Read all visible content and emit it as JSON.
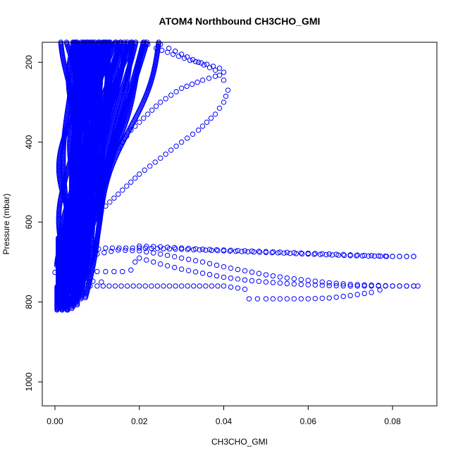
{
  "chart_data": {
    "type": "scatter",
    "title": "ATOM4 Northbound CH3CHO_GMI",
    "xlabel": "CH3CHO_GMI",
    "ylabel": "Pressure (mbar)",
    "xlim": [
      -0.003,
      0.0905
    ],
    "ylim": [
      1060,
      150
    ],
    "y_inverted": true,
    "grid": false,
    "legend": "none",
    "marker": "open-circle",
    "color": "#0000ff",
    "x_ticks": [
      0.0,
      0.02,
      0.04,
      0.06,
      0.08
    ],
    "x_tick_labels": [
      "0.00",
      "0.02",
      "0.04",
      "0.06",
      "0.08"
    ],
    "y_ticks": [
      200,
      400,
      600,
      800,
      1000
    ],
    "y_tick_labels": [
      "200",
      "400",
      "600",
      "800",
      "1000"
    ],
    "series": [
      {
        "x": [
          0.003,
          0.0035,
          0.004,
          0.004,
          0.005,
          0.006,
          0.006,
          0.007,
          0.009,
          0.011,
          0.013,
          0.016,
          0.018,
          0.021,
          0.025,
          0.03,
          0.035,
          0.038,
          0.04,
          0.039,
          0.036,
          0.032,
          0.028,
          0.024,
          0.022
        ],
        "y": [
          820,
          800,
          760,
          720,
          680,
          640,
          600,
          560,
          520,
          480,
          440,
          400,
          370,
          340,
          300,
          265,
          245,
          235,
          225,
          215,
          205,
          195,
          180,
          165,
          155
        ]
      },
      {
        "x": [
          0.002,
          0.003,
          0.004,
          0.006,
          0.009,
          0.012,
          0.016,
          0.02,
          0.025,
          0.03,
          0.034,
          0.038,
          0.04,
          0.041,
          0.04,
          0.038,
          0.034,
          0.03,
          0.027,
          0.025
        ],
        "y": [
          760,
          720,
          680,
          640,
          600,
          560,
          520,
          480,
          440,
          400,
          370,
          330,
          300,
          270,
          245,
          220,
          200,
          180,
          165,
          155
        ]
      },
      {
        "x": [
          0.001,
          0.002,
          0.004,
          0.007,
          0.012,
          0.02,
          0.03,
          0.04,
          0.05,
          0.06,
          0.07,
          0.08,
          0.085
        ],
        "y": [
          700,
          690,
          680,
          672,
          665,
          665,
          668,
          672,
          676,
          680,
          684,
          686,
          686
        ]
      },
      {
        "x": [
          0.002,
          0.005,
          0.01,
          0.015,
          0.02,
          0.025,
          0.03,
          0.035,
          0.04,
          0.045,
          0.05,
          0.055,
          0.06,
          0.065,
          0.07,
          0.075,
          0.08,
          0.085,
          0.086
        ],
        "y": [
          740,
          710,
          680,
          670,
          672,
          680,
          690,
          700,
          712,
          722,
          732,
          740,
          746,
          752,
          756,
          758,
          760,
          760,
          760
        ]
      },
      {
        "x": [
          0.001,
          0.005,
          0.01,
          0.02,
          0.03,
          0.04,
          0.045,
          0.046,
          0.05,
          0.055,
          0.06,
          0.065,
          0.07,
          0.075,
          0.077
        ],
        "y": [
          760,
          760,
          760,
          760,
          760,
          760,
          768,
          792,
          792,
          792,
          792,
          790,
          784,
          776,
          770
        ],
        "note": "horizontal band"
      },
      {
        "x": [
          0.02,
          0.025,
          0.03,
          0.035,
          0.04,
          0.045,
          0.05,
          0.055,
          0.06,
          0.065,
          0.07,
          0.075,
          0.08,
          0.085
        ],
        "y": [
          690,
          705,
          718,
          728,
          738,
          745,
          750,
          754,
          757,
          759,
          760,
          760,
          760,
          760
        ]
      },
      {
        "x": [
          0.0,
          0.004,
          0.008,
          0.012,
          0.016,
          0.018,
          0.019
        ],
        "y": [
          726,
          724,
          724,
          724,
          724,
          720,
          700
        ]
      },
      {
        "x": [
          0.001,
          0.003,
          0.006,
          0.009,
          0.011
        ],
        "y": [
          750,
          748,
          748,
          748,
          750
        ]
      },
      {
        "x": [
          0.02,
          0.025,
          0.03,
          0.035,
          0.04,
          0.045,
          0.05,
          0.055,
          0.06,
          0.065,
          0.07,
          0.075,
          0.08,
          0.085
        ],
        "y": [
          660,
          662,
          665,
          668,
          670,
          672,
          674,
          676,
          678,
          680,
          682,
          684,
          686,
          686
        ]
      }
    ]
  }
}
